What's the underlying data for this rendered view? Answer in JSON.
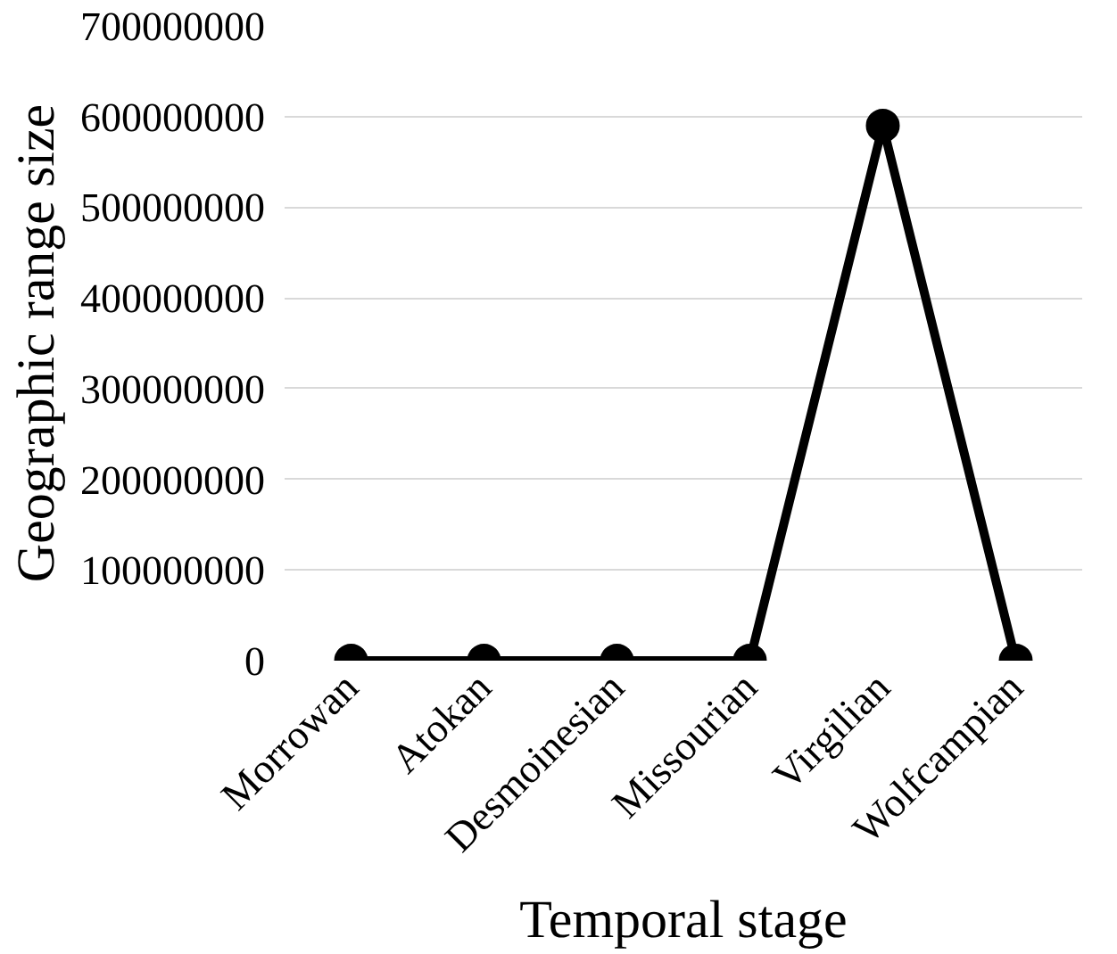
{
  "chart_data": {
    "type": "line",
    "xlabel": "Temporal stage",
    "ylabel": "Geographic range size",
    "categories": [
      "Morrowan",
      "Atokan",
      "Desmoinesian",
      "Missourian",
      "Virgilian",
      "Wolfcampian"
    ],
    "series": [
      {
        "color": "#000000",
        "values": [
          0,
          0,
          0,
          0,
          590000000,
          0
        ]
      }
    ],
    "ylim": [
      0,
      700000000
    ],
    "yticks": [
      0,
      100000000,
      200000000,
      300000000,
      400000000,
      500000000,
      600000000,
      700000000
    ],
    "grid": "y",
    "marker": "circle",
    "line_style": "solid"
  }
}
